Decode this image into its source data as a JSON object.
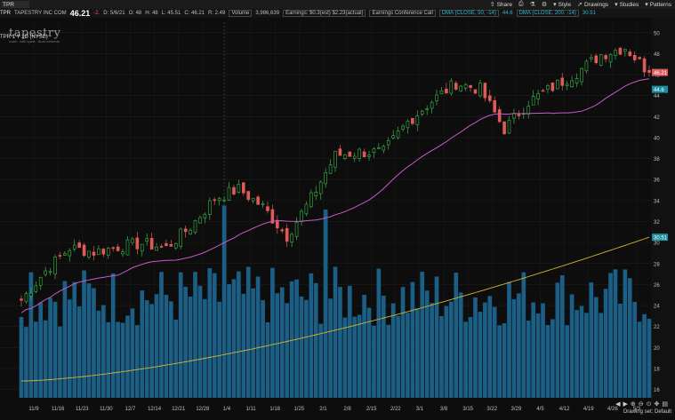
{
  "toolbar": {
    "symbol_input": "TPR",
    "items": [
      {
        "label": "Share",
        "icon": "share-icon",
        "glyph": "⇧"
      },
      {
        "label": "",
        "icon": "print-icon",
        "glyph": "⎙"
      },
      {
        "label": "",
        "icon": "flask-icon",
        "glyph": "⚗"
      },
      {
        "label": "",
        "icon": "gear-icon",
        "glyph": "⚙"
      },
      {
        "label": "Style",
        "icon": "style-icon",
        "glyph": "▾"
      },
      {
        "label": "Drawings",
        "icon": "drawings-icon",
        "glyph": "➚"
      },
      {
        "label": "Studies",
        "icon": "studies-icon",
        "glyph": "▾"
      },
      {
        "label": "Patterns",
        "icon": "patterns-icon",
        "glyph": "▾"
      }
    ]
  },
  "info": {
    "symbol": "TPR",
    "company": "TAPESTRY INC COM",
    "last": "46.21",
    "change": "-2.",
    "date": "D: 5/6/21",
    "open": "O: 48",
    "high": "H: 48",
    "low": "L: 45.51",
    "close": "C: 46.21",
    "range": "R: 2.49",
    "volume_label": "Volume",
    "volume_value": "3,986,639",
    "earnings": "Earnings: $0.3(est) $2.23(actual)",
    "conference": "Earnings Conference Call",
    "dma50_label": "DMA (CLOSE, 50, -14)",
    "dma50_value": "44.6",
    "dma200_label": "DMA (CLOSE, 200, -14)",
    "dma200_value": "30.51"
  },
  "timeframe": "TPR 1 Y 1D (NYSE)",
  "logo": "tapestry",
  "logo_sub": "coach · kate spade · stuart weitzman",
  "footer": "Drawing set: Default",
  "colors": {
    "up": "#3bb54a",
    "down": "#e05a5a",
    "dma50": "#c65ac9",
    "dma200": "#d4b430",
    "volume": "#1c5f86",
    "accent": "#2fb7c9"
  },
  "chart_data": {
    "type": "candlestick",
    "x_tick_labels": [
      "11/9",
      "11/16",
      "11/23",
      "11/30",
      "12/7",
      "12/14",
      "12/21",
      "12/28",
      "1/4",
      "1/11",
      "1/18",
      "1/25",
      "2/1",
      "2/8",
      "2/15",
      "2/22",
      "3/1",
      "3/8",
      "3/15",
      "3/22",
      "3/29",
      "4/5",
      "4/12",
      "4/19",
      "4/26",
      "5/3"
    ],
    "y_tick_labels": [
      "50",
      "48",
      "46",
      "44",
      "42",
      "40",
      "38",
      "36",
      "34",
      "32",
      "30",
      "28",
      "26",
      "24",
      "22",
      "20",
      "18",
      "16"
    ],
    "ylim": [
      15.2,
      51
    ],
    "price_marker": "46.21",
    "dma50_marker": "44.6",
    "dma200_marker": "30.51",
    "weekly_closes": [
      24.5,
      27.3,
      29.5,
      29.1,
      29.6,
      29.9,
      29.5,
      31.5,
      34.2,
      35.1,
      33.4,
      30.6,
      34.2,
      38.3,
      38.6,
      38.6,
      41.5,
      43.5,
      45.2,
      44.6,
      40.8,
      43.4,
      44.8,
      46.2,
      47.9,
      48.6,
      46.21
    ]
  }
}
